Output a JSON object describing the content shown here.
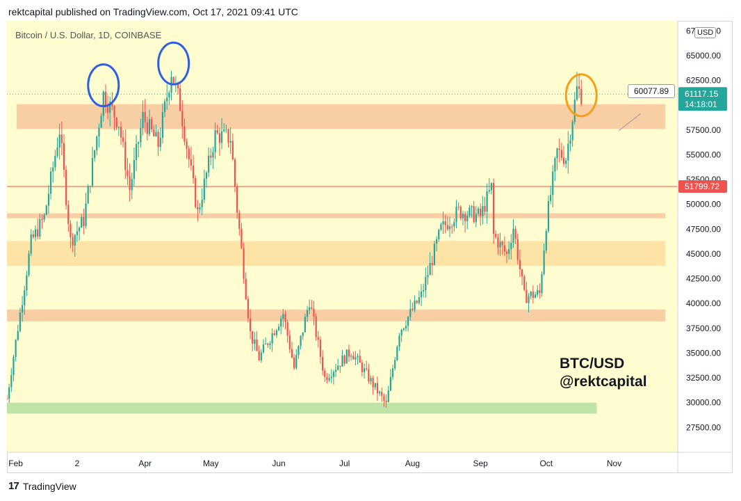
{
  "header": {
    "text": "rektcapital published on TradingView.com, Oct 17, 2021 09:41 UTC"
  },
  "symbol": {
    "label": "Bitcoin / U.S. Dollar, 1D, COINBASE"
  },
  "currency_badge": "USD",
  "watermark": {
    "line1": "BTC/USD",
    "line2": "@rektcapital"
  },
  "footer": {
    "logo": "17",
    "brand": "TradingView"
  },
  "price_tags": {
    "current_price": "61117.15",
    "countdown": "14:18:01",
    "hline_price": "51799.72",
    "callout": "60077.89"
  },
  "colors": {
    "plot_bg": "#fffcd0",
    "up": "#26a69a",
    "down": "#ef5350",
    "zone_orange": "#f7c9a0",
    "zone_yellow": "#fde0a0",
    "zone_green": "#b9e0a3",
    "hline": "#ef5350",
    "blue_circle": "#2c5ee8",
    "orange_circle": "#f5a017",
    "price_tag_current": "#26a69a",
    "price_tag_hline": "#ef5350"
  },
  "chart_data": {
    "type": "candlestick",
    "title": "Bitcoin / U.S. Dollar, 1D, COINBASE",
    "xlabel": "",
    "ylabel": "",
    "ylim": [
      25000,
      68500
    ],
    "y_ticks": [
      27500,
      30000,
      32500,
      35000,
      37500,
      40000,
      42500,
      45000,
      47500,
      50000,
      52500,
      55000,
      57500,
      60000,
      62500,
      65000,
      67500
    ],
    "y_tick_labels": [
      "27500.00",
      "30000.00",
      "32500.00",
      "35000.00",
      "37500.00",
      "40000.00",
      "42500.00",
      "45000.00",
      "47500.00",
      "50000.00",
      "52500.00",
      "55000.00",
      "57500.00",
      "60000.00",
      "62500.00",
      "65000.00",
      "67500.00"
    ],
    "x_tick_labels": [
      {
        "label": "Feb",
        "date": "2021-02-01"
      },
      {
        "label": "2",
        "date": "2021-03-01"
      },
      {
        "label": "Apr",
        "date": "2021-04-01"
      },
      {
        "label": "May",
        "date": "2021-05-01"
      },
      {
        "label": "Jun",
        "date": "2021-06-01"
      },
      {
        "label": "Jul",
        "date": "2021-07-01"
      },
      {
        "label": "Aug",
        "date": "2021-08-01"
      },
      {
        "label": "Sep",
        "date": "2021-09-01"
      },
      {
        "label": "Oct",
        "date": "2021-10-01"
      },
      {
        "label": "Nov",
        "date": "2021-11-01"
      }
    ],
    "x_range": [
      "2021-01-28",
      "2021-11-30"
    ],
    "zones": [
      {
        "low": 57600,
        "high": 60100,
        "color": "zone_orange"
      },
      {
        "low": 48600,
        "high": 49100,
        "color": "zone_orange"
      },
      {
        "low": 43800,
        "high": 46300,
        "color": "zone_yellow"
      },
      {
        "low": 38200,
        "high": 39400,
        "color": "zone_orange"
      },
      {
        "low": 28900,
        "high": 30000,
        "color": "zone_green"
      }
    ],
    "horizontal_line": 51799.72,
    "current_price": 61117.15,
    "callout_price": 60077.89,
    "anchors": [
      {
        "date": "2021-01-28",
        "close": 30400
      },
      {
        "date": "2021-02-08",
        "close": 46200
      },
      {
        "date": "2021-02-14",
        "close": 48700
      },
      {
        "date": "2021-02-21",
        "close": 57500
      },
      {
        "date": "2021-02-26",
        "close": 46300
      },
      {
        "date": "2021-03-04",
        "close": 48400
      },
      {
        "date": "2021-03-13",
        "close": 61100
      },
      {
        "date": "2021-03-20",
        "close": 58200
      },
      {
        "date": "2021-03-25",
        "close": 51500
      },
      {
        "date": "2021-03-31",
        "close": 58800
      },
      {
        "date": "2021-04-07",
        "close": 56000
      },
      {
        "date": "2021-04-13",
        "close": 63400
      },
      {
        "date": "2021-04-17",
        "close": 60000
      },
      {
        "date": "2021-04-25",
        "close": 49100
      },
      {
        "date": "2021-05-03",
        "close": 57000
      },
      {
        "date": "2021-05-10",
        "close": 56700
      },
      {
        "date": "2021-05-13",
        "close": 49500
      },
      {
        "date": "2021-05-19",
        "close": 37000
      },
      {
        "date": "2021-05-23",
        "close": 34500
      },
      {
        "date": "2021-06-03",
        "close": 39000
      },
      {
        "date": "2021-06-08",
        "close": 33500
      },
      {
        "date": "2021-06-15",
        "close": 40300
      },
      {
        "date": "2021-06-22",
        "close": 32500
      },
      {
        "date": "2021-07-04",
        "close": 35200
      },
      {
        "date": "2021-07-20",
        "close": 29800
      },
      {
        "date": "2021-07-26",
        "close": 37200
      },
      {
        "date": "2021-08-05",
        "close": 40800
      },
      {
        "date": "2021-08-14",
        "close": 47500
      },
      {
        "date": "2021-08-22",
        "close": 49300
      },
      {
        "date": "2021-09-01",
        "close": 48800
      },
      {
        "date": "2021-09-06",
        "close": 51700
      },
      {
        "date": "2021-09-07",
        "close": 46900
      },
      {
        "date": "2021-09-13",
        "close": 44900
      },
      {
        "date": "2021-09-16",
        "close": 47700
      },
      {
        "date": "2021-09-21",
        "close": 40700
      },
      {
        "date": "2021-09-28",
        "close": 41000
      },
      {
        "date": "2021-10-01",
        "close": 48100
      },
      {
        "date": "2021-10-06",
        "close": 55300
      },
      {
        "date": "2021-10-10",
        "close": 54700
      },
      {
        "date": "2021-10-15",
        "close": 61600
      },
      {
        "date": "2021-10-17",
        "close": 61117
      }
    ]
  }
}
